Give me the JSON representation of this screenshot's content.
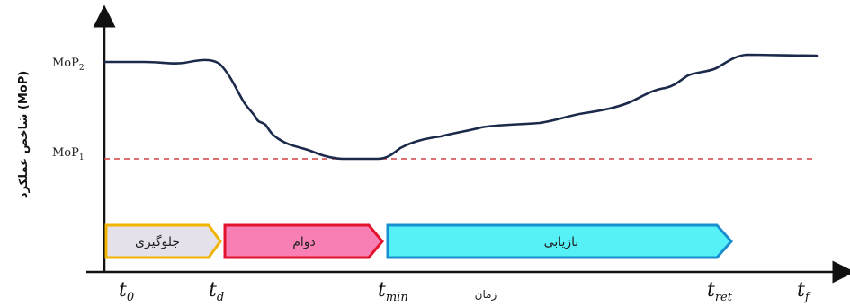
{
  "y_axis_label": "شاخص عملکرد (MoP)",
  "x_axis_label": "زمان",
  "mop_levels": [
    {
      "base": "MoP",
      "sub": "2"
    },
    {
      "base": "MoP",
      "sub": "1"
    }
  ],
  "time_marks": [
    {
      "base": "t",
      "sub": "0"
    },
    {
      "base": "t",
      "sub": "d"
    },
    {
      "base": "t",
      "sub": "min"
    },
    {
      "base": "t",
      "sub": "ret"
    },
    {
      "base": "t",
      "sub": "f"
    }
  ],
  "phases": [
    {
      "label": "جلوگیری",
      "fill": "#e4e1ea",
      "stroke": "#f0b400"
    },
    {
      "label": "دوام",
      "fill": "#f77fb3",
      "stroke": "#e3122d"
    },
    {
      "label": "بازیابی",
      "fill": "#55f1f6",
      "stroke": "#1a8fd0"
    }
  ],
  "colors": {
    "curve": "#1b2a4a",
    "baseline_dashed": "#d04040",
    "axes": "#111111"
  }
}
